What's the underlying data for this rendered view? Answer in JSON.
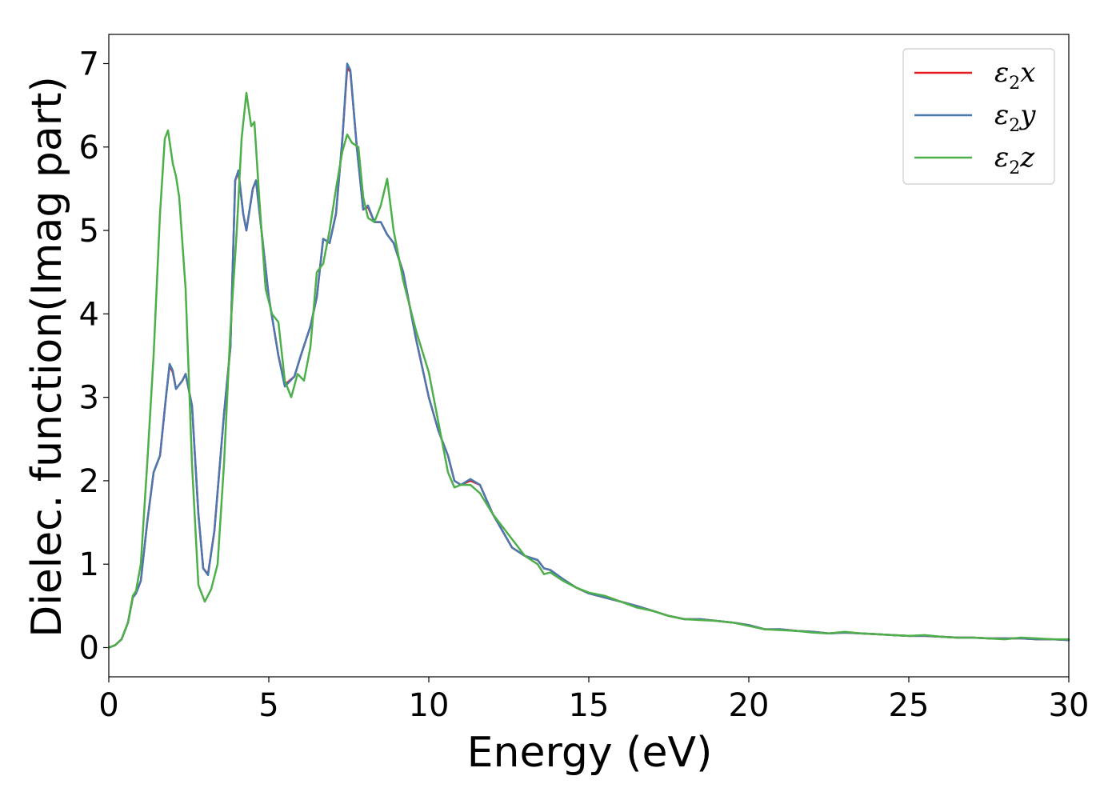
{
  "chart_data": {
    "type": "line",
    "title": "",
    "xlabel": "Energy (eV)",
    "ylabel": "Dielec. function(Imag part)",
    "xlim": [
      0,
      30
    ],
    "ylim": [
      -0.35,
      7.35
    ],
    "xticks": [
      0,
      5,
      10,
      15,
      20,
      25,
      30
    ],
    "yticks": [
      0,
      1,
      2,
      3,
      4,
      5,
      6,
      7
    ],
    "grid": false,
    "legend": {
      "position": "top-right"
    },
    "series": [
      {
        "name": "ε2x",
        "legend_main": "ε",
        "legend_sub": "2",
        "legend_tail": "x",
        "color": "#e41a1c",
        "points": [
          [
            0,
            0
          ],
          [
            0.2,
            0.03
          ],
          [
            0.4,
            0.1
          ],
          [
            0.6,
            0.3
          ],
          [
            0.75,
            0.6
          ],
          [
            0.85,
            0.65
          ],
          [
            1.0,
            0.8
          ],
          [
            1.2,
            1.5
          ],
          [
            1.4,
            2.1
          ],
          [
            1.6,
            2.3
          ],
          [
            1.8,
            3.05
          ],
          [
            1.9,
            3.38
          ],
          [
            2.0,
            3.3
          ],
          [
            2.1,
            3.1
          ],
          [
            2.3,
            3.2
          ],
          [
            2.4,
            3.28
          ],
          [
            2.6,
            2.9
          ],
          [
            2.8,
            1.6
          ],
          [
            2.95,
            0.95
          ],
          [
            3.1,
            0.88
          ],
          [
            3.3,
            1.4
          ],
          [
            3.6,
            2.8
          ],
          [
            3.8,
            3.6
          ],
          [
            3.95,
            5.6
          ],
          [
            4.05,
            5.7
          ],
          [
            4.2,
            5.2
          ],
          [
            4.3,
            5.0
          ],
          [
            4.5,
            5.5
          ],
          [
            4.6,
            5.6
          ],
          [
            4.8,
            4.9
          ],
          [
            5.0,
            4.2
          ],
          [
            5.3,
            3.5
          ],
          [
            5.5,
            3.15
          ],
          [
            5.8,
            3.25
          ],
          [
            6.0,
            3.5
          ],
          [
            6.3,
            3.85
          ],
          [
            6.5,
            4.2
          ],
          [
            6.7,
            4.9
          ],
          [
            6.9,
            4.85
          ],
          [
            7.1,
            5.2
          ],
          [
            7.3,
            6.1
          ],
          [
            7.45,
            6.95
          ],
          [
            7.55,
            6.9
          ],
          [
            7.75,
            6.0
          ],
          [
            7.95,
            5.25
          ],
          [
            8.1,
            5.28
          ],
          [
            8.3,
            5.1
          ],
          [
            8.5,
            5.1
          ],
          [
            8.7,
            4.95
          ],
          [
            8.9,
            4.85
          ],
          [
            9.2,
            4.5
          ],
          [
            9.6,
            3.7
          ],
          [
            10.0,
            3.0
          ],
          [
            10.3,
            2.6
          ],
          [
            10.6,
            2.3
          ],
          [
            10.8,
            2.0
          ],
          [
            11.0,
            1.95
          ],
          [
            11.3,
            2.0
          ],
          [
            11.6,
            1.95
          ],
          [
            12.0,
            1.6
          ],
          [
            12.3,
            1.4
          ],
          [
            12.6,
            1.2
          ],
          [
            13.0,
            1.1
          ],
          [
            13.4,
            1.05
          ],
          [
            13.6,
            0.95
          ],
          [
            13.8,
            0.93
          ],
          [
            14.2,
            0.82
          ],
          [
            14.6,
            0.72
          ],
          [
            15.0,
            0.65
          ],
          [
            15.5,
            0.6
          ],
          [
            16.0,
            0.55
          ],
          [
            16.5,
            0.5
          ],
          [
            17.0,
            0.44
          ],
          [
            17.5,
            0.38
          ],
          [
            18.0,
            0.34
          ],
          [
            18.5,
            0.34
          ],
          [
            19.0,
            0.32
          ],
          [
            19.5,
            0.3
          ],
          [
            20.0,
            0.27
          ],
          [
            20.5,
            0.22
          ],
          [
            21.0,
            0.22
          ],
          [
            21.5,
            0.2
          ],
          [
            22.0,
            0.19
          ],
          [
            22.5,
            0.17
          ],
          [
            23.0,
            0.18
          ],
          [
            23.5,
            0.17
          ],
          [
            24.0,
            0.16
          ],
          [
            24.5,
            0.15
          ],
          [
            25.0,
            0.14
          ],
          [
            25.5,
            0.14
          ],
          [
            26.0,
            0.13
          ],
          [
            26.5,
            0.12
          ],
          [
            27.0,
            0.12
          ],
          [
            27.5,
            0.11
          ],
          [
            28.0,
            0.11
          ],
          [
            28.5,
            0.11
          ],
          [
            29.0,
            0.1
          ],
          [
            29.5,
            0.1
          ],
          [
            30.0,
            0.09
          ]
        ]
      },
      {
        "name": "ε2y",
        "legend_main": "ε",
        "legend_sub": "2",
        "legend_tail": "y",
        "color": "#4a78b0",
        "points": [
          [
            0,
            0
          ],
          [
            0.2,
            0.03
          ],
          [
            0.4,
            0.1
          ],
          [
            0.6,
            0.3
          ],
          [
            0.75,
            0.6
          ],
          [
            0.85,
            0.65
          ],
          [
            1.0,
            0.8
          ],
          [
            1.2,
            1.5
          ],
          [
            1.4,
            2.1
          ],
          [
            1.6,
            2.3
          ],
          [
            1.8,
            3.05
          ],
          [
            1.9,
            3.4
          ],
          [
            2.0,
            3.32
          ],
          [
            2.1,
            3.1
          ],
          [
            2.3,
            3.2
          ],
          [
            2.4,
            3.28
          ],
          [
            2.6,
            2.9
          ],
          [
            2.8,
            1.6
          ],
          [
            2.95,
            0.95
          ],
          [
            3.1,
            0.87
          ],
          [
            3.3,
            1.4
          ],
          [
            3.6,
            2.8
          ],
          [
            3.8,
            3.6
          ],
          [
            3.95,
            5.6
          ],
          [
            4.05,
            5.72
          ],
          [
            4.2,
            5.2
          ],
          [
            4.3,
            5.0
          ],
          [
            4.5,
            5.5
          ],
          [
            4.6,
            5.6
          ],
          [
            4.8,
            4.9
          ],
          [
            5.0,
            4.2
          ],
          [
            5.3,
            3.5
          ],
          [
            5.5,
            3.13
          ],
          [
            5.8,
            3.25
          ],
          [
            6.0,
            3.5
          ],
          [
            6.3,
            3.85
          ],
          [
            6.5,
            4.2
          ],
          [
            6.7,
            4.9
          ],
          [
            6.9,
            4.85
          ],
          [
            7.1,
            5.2
          ],
          [
            7.3,
            6.1
          ],
          [
            7.45,
            7.0
          ],
          [
            7.55,
            6.92
          ],
          [
            7.75,
            6.0
          ],
          [
            7.95,
            5.25
          ],
          [
            8.1,
            5.3
          ],
          [
            8.3,
            5.1
          ],
          [
            8.5,
            5.1
          ],
          [
            8.7,
            4.95
          ],
          [
            8.9,
            4.85
          ],
          [
            9.2,
            4.5
          ],
          [
            9.6,
            3.7
          ],
          [
            10.0,
            3.0
          ],
          [
            10.3,
            2.6
          ],
          [
            10.6,
            2.3
          ],
          [
            10.8,
            2.0
          ],
          [
            11.0,
            1.95
          ],
          [
            11.3,
            2.02
          ],
          [
            11.6,
            1.95
          ],
          [
            12.0,
            1.6
          ],
          [
            12.3,
            1.4
          ],
          [
            12.6,
            1.2
          ],
          [
            13.0,
            1.1
          ],
          [
            13.4,
            1.05
          ],
          [
            13.6,
            0.95
          ],
          [
            13.8,
            0.93
          ],
          [
            14.2,
            0.82
          ],
          [
            14.6,
            0.72
          ],
          [
            15.0,
            0.65
          ],
          [
            15.5,
            0.6
          ],
          [
            16.0,
            0.55
          ],
          [
            16.5,
            0.5
          ],
          [
            17.0,
            0.44
          ],
          [
            17.5,
            0.38
          ],
          [
            18.0,
            0.34
          ],
          [
            18.5,
            0.34
          ],
          [
            19.0,
            0.32
          ],
          [
            19.5,
            0.3
          ],
          [
            20.0,
            0.27
          ],
          [
            20.5,
            0.22
          ],
          [
            21.0,
            0.22
          ],
          [
            21.5,
            0.2
          ],
          [
            22.0,
            0.19
          ],
          [
            22.5,
            0.17
          ],
          [
            23.0,
            0.18
          ],
          [
            23.5,
            0.17
          ],
          [
            24.0,
            0.16
          ],
          [
            24.5,
            0.15
          ],
          [
            25.0,
            0.14
          ],
          [
            25.5,
            0.14
          ],
          [
            26.0,
            0.13
          ],
          [
            26.5,
            0.12
          ],
          [
            27.0,
            0.12
          ],
          [
            27.5,
            0.11
          ],
          [
            28.0,
            0.11
          ],
          [
            28.5,
            0.11
          ],
          [
            29.0,
            0.1
          ],
          [
            29.5,
            0.1
          ],
          [
            30.0,
            0.09
          ]
        ]
      },
      {
        "name": "ε2z",
        "legend_main": "ε",
        "legend_sub": "2",
        "legend_tail": "z",
        "color": "#4daf4a",
        "points": [
          [
            0,
            0
          ],
          [
            0.2,
            0.03
          ],
          [
            0.4,
            0.1
          ],
          [
            0.6,
            0.3
          ],
          [
            0.75,
            0.62
          ],
          [
            0.85,
            0.68
          ],
          [
            1.0,
            1.0
          ],
          [
            1.2,
            2.2
          ],
          [
            1.4,
            3.5
          ],
          [
            1.6,
            5.2
          ],
          [
            1.75,
            6.1
          ],
          [
            1.85,
            6.2
          ],
          [
            2.0,
            5.8
          ],
          [
            2.1,
            5.65
          ],
          [
            2.2,
            5.4
          ],
          [
            2.4,
            4.3
          ],
          [
            2.6,
            2.2
          ],
          [
            2.8,
            0.75
          ],
          [
            3.0,
            0.55
          ],
          [
            3.2,
            0.7
          ],
          [
            3.4,
            1.0
          ],
          [
            3.6,
            2.2
          ],
          [
            3.8,
            3.8
          ],
          [
            4.0,
            5.0
          ],
          [
            4.15,
            6.1
          ],
          [
            4.3,
            6.65
          ],
          [
            4.45,
            6.25
          ],
          [
            4.55,
            6.3
          ],
          [
            4.7,
            5.4
          ],
          [
            4.9,
            4.3
          ],
          [
            5.1,
            4.0
          ],
          [
            5.3,
            3.9
          ],
          [
            5.5,
            3.2
          ],
          [
            5.7,
            3.0
          ],
          [
            5.9,
            3.28
          ],
          [
            6.1,
            3.2
          ],
          [
            6.3,
            3.6
          ],
          [
            6.5,
            4.5
          ],
          [
            6.7,
            4.6
          ],
          [
            6.9,
            5.0
          ],
          [
            7.1,
            5.5
          ],
          [
            7.3,
            5.95
          ],
          [
            7.45,
            6.15
          ],
          [
            7.6,
            6.05
          ],
          [
            7.8,
            6.0
          ],
          [
            7.95,
            5.4
          ],
          [
            8.1,
            5.15
          ],
          [
            8.3,
            5.1
          ],
          [
            8.5,
            5.3
          ],
          [
            8.7,
            5.62
          ],
          [
            8.9,
            5.0
          ],
          [
            9.2,
            4.4
          ],
          [
            9.6,
            3.8
          ],
          [
            10.0,
            3.3
          ],
          [
            10.3,
            2.7
          ],
          [
            10.6,
            2.1
          ],
          [
            10.8,
            1.92
          ],
          [
            11.0,
            1.95
          ],
          [
            11.3,
            1.95
          ],
          [
            11.6,
            1.85
          ],
          [
            12.0,
            1.6
          ],
          [
            12.3,
            1.45
          ],
          [
            12.6,
            1.3
          ],
          [
            13.0,
            1.1
          ],
          [
            13.4,
            1.0
          ],
          [
            13.6,
            0.88
          ],
          [
            13.8,
            0.9
          ],
          [
            14.2,
            0.8
          ],
          [
            14.6,
            0.72
          ],
          [
            15.0,
            0.66
          ],
          [
            15.5,
            0.62
          ],
          [
            16.0,
            0.55
          ],
          [
            16.5,
            0.48
          ],
          [
            17.0,
            0.44
          ],
          [
            17.5,
            0.38
          ],
          [
            18.0,
            0.34
          ],
          [
            18.5,
            0.33
          ],
          [
            19.0,
            0.32
          ],
          [
            19.5,
            0.3
          ],
          [
            20.0,
            0.26
          ],
          [
            20.5,
            0.22
          ],
          [
            21.0,
            0.21
          ],
          [
            21.5,
            0.2
          ],
          [
            22.0,
            0.18
          ],
          [
            22.5,
            0.17
          ],
          [
            23.0,
            0.19
          ],
          [
            23.5,
            0.17
          ],
          [
            24.0,
            0.16
          ],
          [
            24.5,
            0.15
          ],
          [
            25.0,
            0.14
          ],
          [
            25.5,
            0.15
          ],
          [
            26.0,
            0.13
          ],
          [
            26.5,
            0.12
          ],
          [
            27.0,
            0.12
          ],
          [
            27.5,
            0.11
          ],
          [
            28.0,
            0.1
          ],
          [
            28.5,
            0.12
          ],
          [
            29.0,
            0.11
          ],
          [
            29.5,
            0.1
          ],
          [
            30.0,
            0.1
          ]
        ]
      }
    ]
  }
}
